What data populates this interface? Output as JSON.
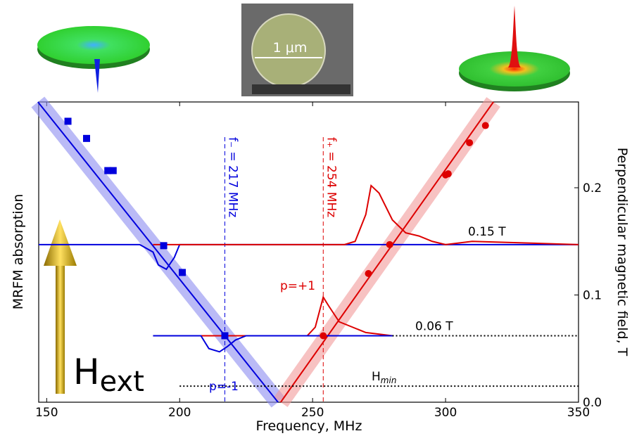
{
  "chart_data": {
    "type": "scatter",
    "xlabel": "Frequency, MHz",
    "ylabel_left": "MRFM absorption",
    "ylabel_right": "Perpendicular magnetic field, T",
    "scale_label": "1 μm",
    "xlim": [
      147,
      350
    ],
    "xticks": [
      150,
      200,
      250,
      300,
      350
    ],
    "ylim": [
      0,
      0.28
    ],
    "yticks": [
      {
        "value": 0,
        "label": "0.0"
      },
      0.1,
      0.2
    ],
    "series": [
      {
        "color": "#0000dd",
        "marker": "square",
        "x": [
          158,
          165,
          173,
          175,
          194,
          201,
          217
        ],
        "values": [
          0.262,
          0.246,
          0.216,
          0.216,
          0.146,
          0.121,
          0.062
        ]
      },
      {
        "color": "#dd0000",
        "marker": "circle",
        "x": [
          254,
          271,
          279,
          300,
          301,
          309,
          315
        ],
        "values": [
          0.062,
          0.12,
          0.147,
          0.212,
          0.213,
          0.242,
          0.258
        ]
      }
    ],
    "fit_lines": [
      {
        "color": "#0000dd",
        "band": "#8c8cf0",
        "x": [
          146.7,
          237
        ],
        "values": [
          0.28,
          0
        ]
      },
      {
        "color": "#dd0000",
        "band": "#f29a9a",
        "x": [
          238,
          318
        ],
        "values": [
          0,
          0.28
        ]
      }
    ],
    "spectra": [
      {
        "color": "#0000dd",
        "x": [
          147,
          185,
          190,
          192,
          195,
          198,
          200,
          205,
          350
        ],
        "values": [
          0.147,
          0.147,
          0.14,
          0.128,
          0.124,
          0.135,
          0.147,
          0.147,
          0.147
        ]
      },
      {
        "color": "#dd0000",
        "x": [
          190,
          262,
          266,
          270,
          272,
          275,
          280,
          285,
          290,
          295,
          300,
          310,
          350
        ],
        "values": [
          0.147,
          0.147,
          0.15,
          0.175,
          0.202,
          0.195,
          0.17,
          0.158,
          0.155,
          0.15,
          0.147,
          0.15,
          0.147
        ]
      },
      {
        "color": "#dd0000",
        "x": [
          190,
          248,
          251,
          254,
          256,
          260,
          265,
          270,
          280
        ],
        "values": [
          0.062,
          0.062,
          0.07,
          0.098,
          0.09,
          0.075,
          0.07,
          0.065,
          0.062
        ]
      },
      {
        "color": "#0000dd",
        "x": [
          190,
          208,
          211,
          215,
          218,
          221,
          225,
          230,
          280
        ],
        "values": [
          0.062,
          0.062,
          0.05,
          0.047,
          0.052,
          0.058,
          0.062,
          0.062,
          0.062
        ]
      }
    ],
    "vlines": [
      {
        "x": 217,
        "color": "#0000dd",
        "label": "f₋ = 217 MHz"
      },
      {
        "x": 254,
        "color": "#dd0000",
        "label": "f₊ = 254 MHz"
      }
    ],
    "hlines": [
      {
        "y": 0.062,
        "x": [
          280,
          350
        ],
        "label": "0.06 T"
      },
      {
        "y": 0.015,
        "x": [
          200,
          350
        ],
        "label": "H",
        "sub": "min"
      }
    ],
    "annotations": [
      {
        "text": "0.15 T",
        "color": "#000000"
      },
      {
        "text": "p=+1",
        "color": "#dd0000"
      },
      {
        "text": "p=-1",
        "color": "#0000dd"
      }
    ],
    "field_label": {
      "text": "H",
      "sub": "ext"
    }
  }
}
